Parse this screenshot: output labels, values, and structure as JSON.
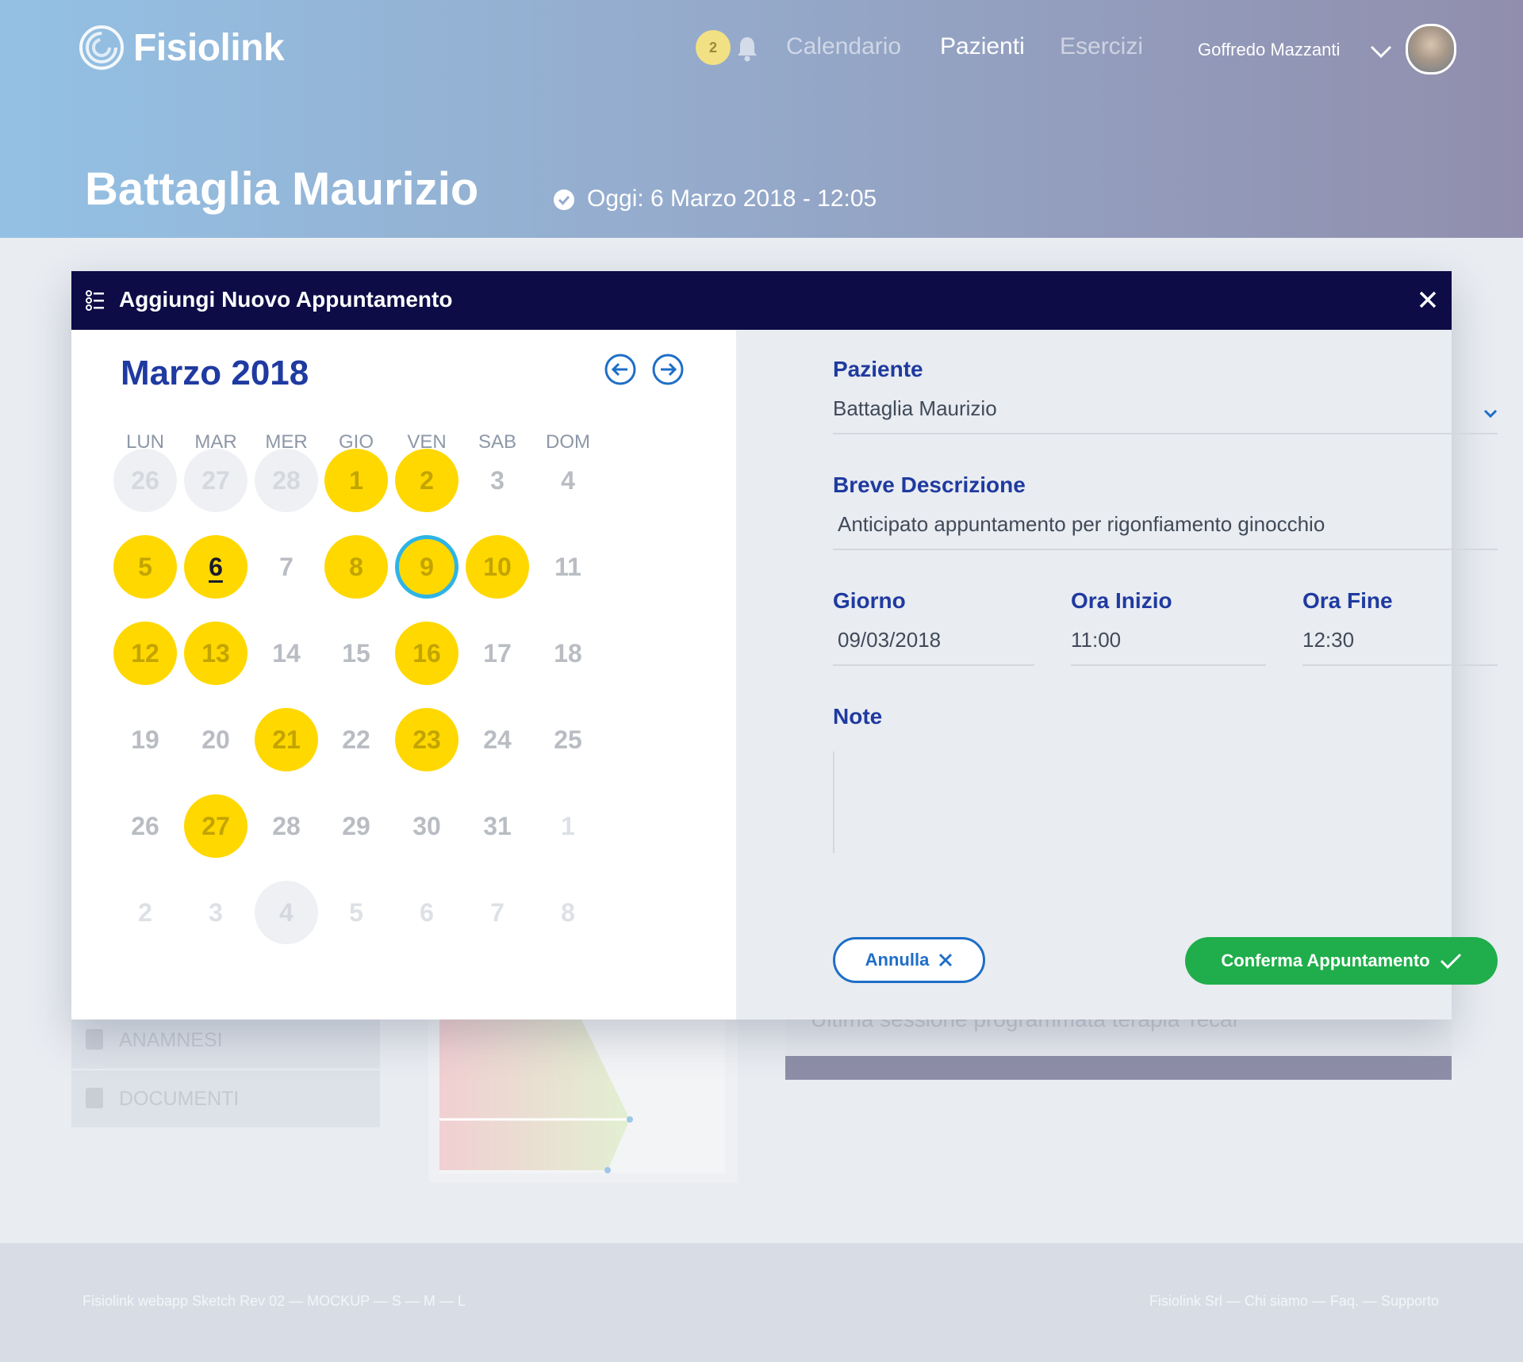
{
  "app": {
    "name": "Fisiolink"
  },
  "header": {
    "notifications_count": "2",
    "nav": [
      {
        "label": "Calendario"
      },
      {
        "label": "Pazienti"
      },
      {
        "label": "Esercizi"
      }
    ],
    "user_name": "Goffredo Mazzanti"
  },
  "patient": {
    "name": "Battaglia Maurizio",
    "today": "Oggi: 6 Marzo 2018 - 12:05"
  },
  "background": {
    "sidebar": [
      {
        "label": "ANAMNESI"
      },
      {
        "label": "DOCUMENTI"
      }
    ],
    "panel_text": "Ultima sessione programmata terapia Tecar"
  },
  "modal": {
    "title": "Aggiungi Nuovo Appuntamento",
    "calendar": {
      "month_label": "Marzo 2018",
      "weekdays": [
        "LUN",
        "MAR",
        "MER",
        "GIO",
        "VEN",
        "SAB",
        "DOM"
      ],
      "weeks": [
        [
          {
            "d": "26",
            "s": "other-bg"
          },
          {
            "d": "27",
            "s": "other-bg"
          },
          {
            "d": "28",
            "s": "other-bg"
          },
          {
            "d": "1",
            "s": "hi"
          },
          {
            "d": "2",
            "s": "hi"
          },
          {
            "d": "3",
            "s": "plain"
          },
          {
            "d": "4",
            "s": "plain"
          }
        ],
        [
          {
            "d": "5",
            "s": "hi"
          },
          {
            "d": "6",
            "s": "today"
          },
          {
            "d": "7",
            "s": "plain"
          },
          {
            "d": "8",
            "s": "hi"
          },
          {
            "d": "9",
            "s": "sel"
          },
          {
            "d": "10",
            "s": "hi"
          },
          {
            "d": "11",
            "s": "plain"
          }
        ],
        [
          {
            "d": "12",
            "s": "hi"
          },
          {
            "d": "13",
            "s": "hi"
          },
          {
            "d": "14",
            "s": "plain"
          },
          {
            "d": "15",
            "s": "plain"
          },
          {
            "d": "16",
            "s": "hi"
          },
          {
            "d": "17",
            "s": "plain"
          },
          {
            "d": "18",
            "s": "plain"
          }
        ],
        [
          {
            "d": "19",
            "s": "plain"
          },
          {
            "d": "20",
            "s": "plain"
          },
          {
            "d": "21",
            "s": "hi"
          },
          {
            "d": "22",
            "s": "plain"
          },
          {
            "d": "23",
            "s": "hi"
          },
          {
            "d": "24",
            "s": "plain"
          },
          {
            "d": "25",
            "s": "plain"
          }
        ],
        [
          {
            "d": "26",
            "s": "plain"
          },
          {
            "d": "27",
            "s": "hi"
          },
          {
            "d": "28",
            "s": "plain"
          },
          {
            "d": "29",
            "s": "plain"
          },
          {
            "d": "30",
            "s": "plain"
          },
          {
            "d": "31",
            "s": "plain"
          },
          {
            "d": "1",
            "s": "other"
          }
        ],
        [
          {
            "d": "2",
            "s": "other"
          },
          {
            "d": "3",
            "s": "other"
          },
          {
            "d": "4",
            "s": "other-bg"
          },
          {
            "d": "5",
            "s": "other"
          },
          {
            "d": "6",
            "s": "other"
          },
          {
            "d": "7",
            "s": "other"
          },
          {
            "d": "8",
            "s": "other"
          }
        ]
      ]
    },
    "form": {
      "patient_label": "Paziente",
      "patient_value": "Battaglia Maurizio",
      "desc_label": "Breve Descrizione",
      "desc_value": "Anticipato appuntamento per rigonfiamento ginocchio",
      "day_label": "Giorno",
      "day_value": "09/03/2018",
      "start_label": "Ora Inizio",
      "start_value": "11:00",
      "end_label": "Ora Fine",
      "end_value": "12:30",
      "note_label": "Note",
      "note_value": "",
      "cancel_label": "Annulla",
      "confirm_label": "Conferma Appuntamento"
    }
  },
  "footer": {
    "left": "Fisiolink webapp Sketch Rev 02  —  MOCKUP  —  S  —  M  —  L",
    "right": "Fisiolink Srl  —  Chi siamo  —  Faq.  —  Supporto"
  }
}
